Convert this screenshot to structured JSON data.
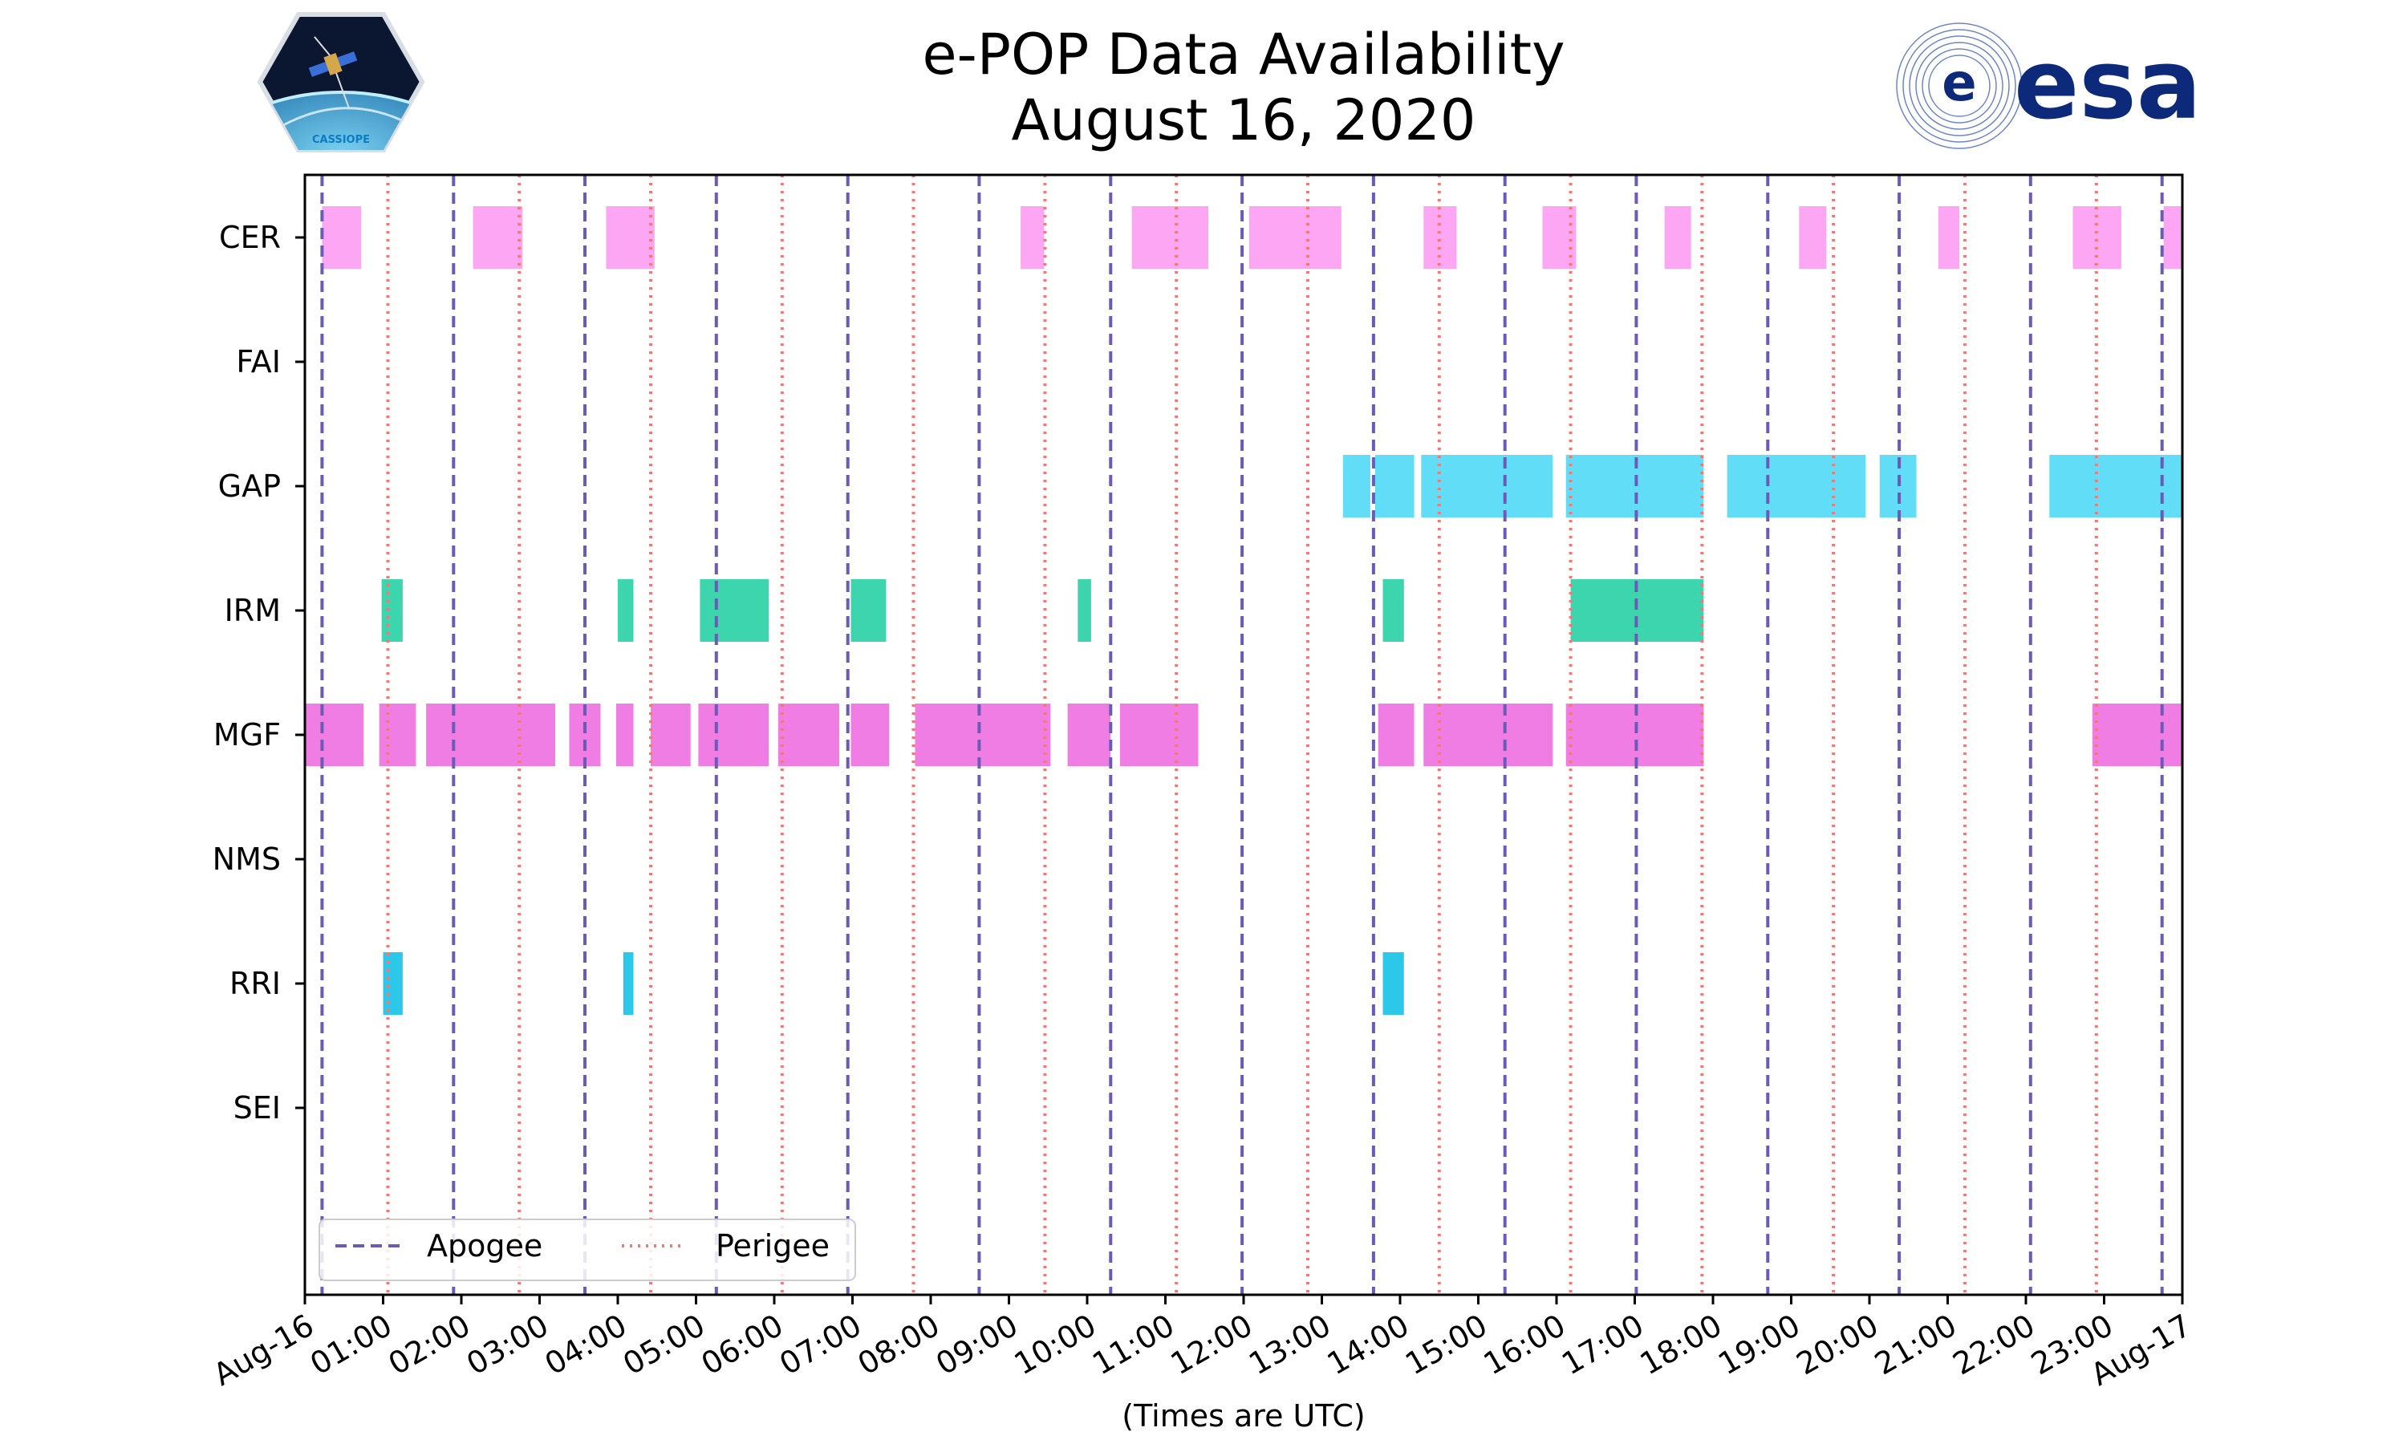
{
  "header": {
    "title_line1": "e-POP Data Availability",
    "title_line2": "August 16, 2020",
    "left_logo": "cassiope-mission-badge",
    "left_logo_text": "CASSIOPE",
    "right_logo": "esa-logo",
    "right_logo_text": "esa"
  },
  "chart_data": {
    "type": "timeline",
    "title": "e-POP Data Availability August 16, 2020",
    "xlabel": "(Times are UTC)",
    "ylabel": "",
    "xlim_hours": [
      0,
      24
    ],
    "x_tick_labels": [
      "Aug-16",
      "01:00",
      "02:00",
      "03:00",
      "04:00",
      "05:00",
      "06:00",
      "07:00",
      "08:00",
      "09:00",
      "10:00",
      "11:00",
      "12:00",
      "13:00",
      "14:00",
      "15:00",
      "16:00",
      "17:00",
      "18:00",
      "19:00",
      "20:00",
      "21:00",
      "22:00",
      "23:00",
      "Aug-17"
    ],
    "instruments": [
      "CER",
      "FAI",
      "GAP",
      "IRM",
      "MGF",
      "NMS",
      "RRI",
      "SEI"
    ],
    "series": [
      {
        "name": "CER",
        "color": "#fda6f4",
        "intervals": [
          [
            0.22,
            0.72
          ],
          [
            2.15,
            2.78
          ],
          [
            3.85,
            4.47
          ],
          [
            9.15,
            9.45
          ],
          [
            10.57,
            11.55
          ],
          [
            12.07,
            13.25
          ],
          [
            14.3,
            14.72
          ],
          [
            15.82,
            16.25
          ],
          [
            17.38,
            17.72
          ],
          [
            19.1,
            19.45
          ],
          [
            20.88,
            21.15
          ],
          [
            22.6,
            23.22
          ],
          [
            23.76,
            24
          ]
        ]
      },
      {
        "name": "FAI",
        "color": "#f3a5f0",
        "intervals": []
      },
      {
        "name": "GAP",
        "color": "#61ddf8",
        "intervals": [
          [
            13.27,
            13.62
          ],
          [
            13.68,
            14.18
          ],
          [
            14.27,
            15.95
          ],
          [
            16.12,
            17.88
          ],
          [
            18.18,
            19.95
          ],
          [
            20.13,
            20.6
          ],
          [
            22.3,
            24
          ]
        ]
      },
      {
        "name": "IRM",
        "color": "#3dd5ad",
        "intervals": [
          [
            0.98,
            1.25
          ],
          [
            4.0,
            4.2
          ],
          [
            5.05,
            5.93
          ],
          [
            6.98,
            7.43
          ],
          [
            9.88,
            10.05
          ],
          [
            13.78,
            14.05
          ],
          [
            16.18,
            17.88
          ]
        ]
      },
      {
        "name": "MGF",
        "color": "#f07de4",
        "intervals": [
          [
            0.0,
            0.75
          ],
          [
            0.95,
            1.42
          ],
          [
            1.55,
            3.2
          ],
          [
            3.38,
            3.78
          ],
          [
            3.98,
            4.2
          ],
          [
            4.42,
            4.93
          ],
          [
            5.03,
            5.93
          ],
          [
            6.05,
            6.83
          ],
          [
            6.98,
            7.47
          ],
          [
            7.8,
            9.53
          ],
          [
            9.75,
            10.3
          ],
          [
            10.42,
            11.42
          ],
          [
            13.72,
            14.18
          ],
          [
            14.3,
            15.95
          ],
          [
            16.12,
            17.88
          ],
          [
            22.85,
            24
          ]
        ]
      },
      {
        "name": "NMS",
        "color": "#f07de4",
        "intervals": []
      },
      {
        "name": "RRI",
        "color": "#2cc8ea",
        "intervals": [
          [
            1.0,
            1.25
          ],
          [
            4.07,
            4.2
          ],
          [
            13.78,
            14.05
          ]
        ]
      },
      {
        "name": "SEI",
        "color": "#f07de4",
        "intervals": []
      }
    ],
    "apogee_hours": [
      0.22,
      1.9,
      3.58,
      5.26,
      6.94,
      8.62,
      10.3,
      11.98,
      13.66,
      15.34,
      17.02,
      18.7,
      20.38,
      22.06,
      23.74
    ],
    "perigee_hours": [
      1.06,
      2.74,
      4.42,
      6.1,
      7.78,
      9.46,
      11.14,
      12.82,
      14.5,
      16.18,
      17.86,
      19.54,
      21.22,
      22.9
    ],
    "legend": {
      "position": "lower-left",
      "entries": [
        {
          "label": "Apogee",
          "color": "#6b5ab6",
          "style": "dashed"
        },
        {
          "label": "Perigee",
          "color": "#f07878",
          "style": "dotted"
        }
      ]
    }
  }
}
